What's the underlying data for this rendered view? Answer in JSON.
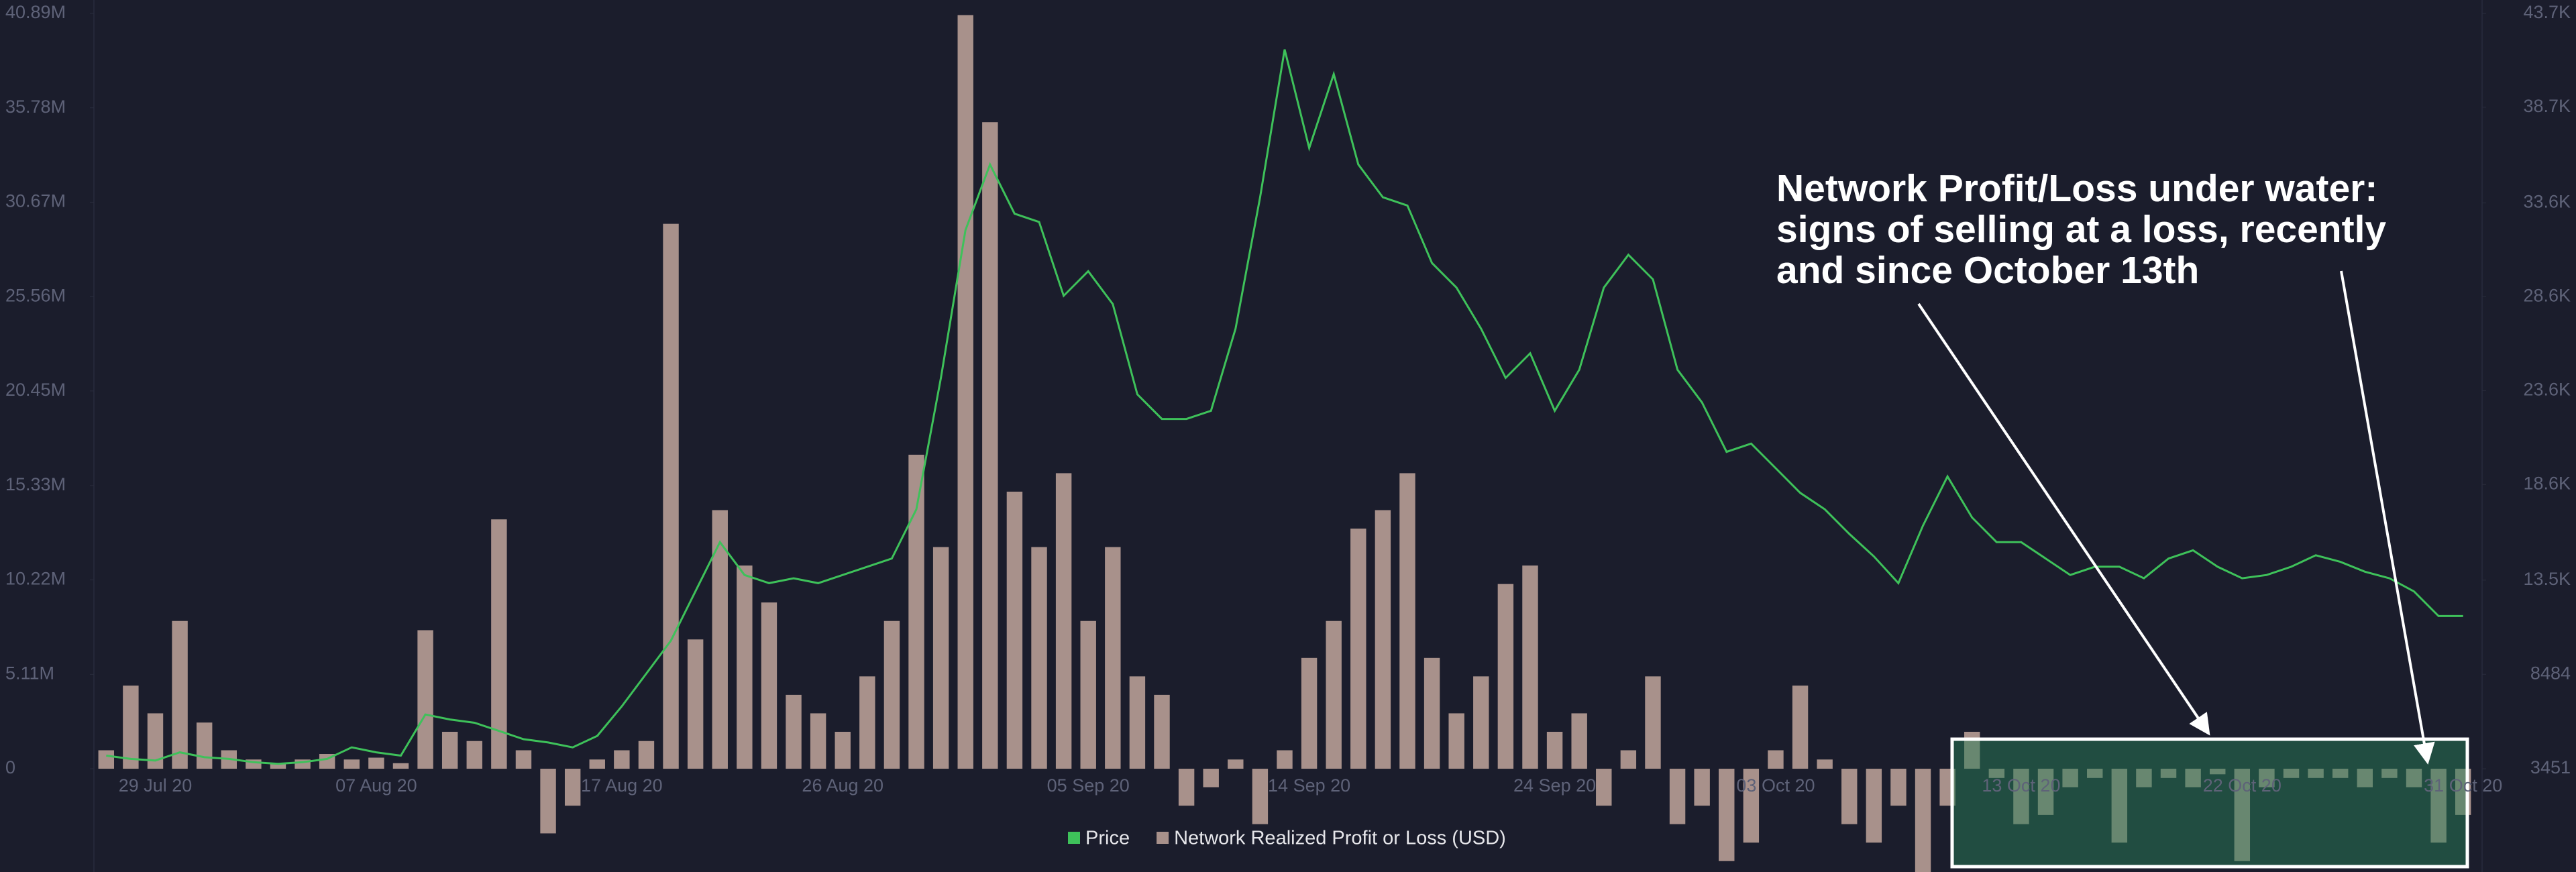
{
  "chart_data": {
    "type": "bar-line",
    "annotation": [
      "Network Profit/Loss under water:",
      "signs of selling at a loss, recently",
      "and since October 13th"
    ],
    "categories": [
      null,
      null,
      "29 Jul 20",
      null,
      null,
      null,
      null,
      null,
      null,
      null,
      null,
      "07 Aug 20",
      null,
      null,
      null,
      null,
      null,
      null,
      null,
      null,
      null,
      "17 Aug 20",
      null,
      null,
      null,
      null,
      null,
      null,
      null,
      null,
      "26 Aug 20",
      null,
      null,
      null,
      null,
      null,
      null,
      null,
      null,
      null,
      "05 Sep 20",
      null,
      null,
      null,
      null,
      null,
      null,
      null,
      null,
      "14 Sep 20",
      null,
      null,
      null,
      null,
      null,
      null,
      null,
      null,
      null,
      "24 Sep 20",
      null,
      null,
      null,
      null,
      null,
      null,
      null,
      null,
      "03 Oct 20",
      null,
      null,
      null,
      null,
      null,
      null,
      null,
      null,
      null,
      "13 Oct 20",
      null,
      null,
      null,
      null,
      null,
      null,
      null,
      null,
      "22 Oct 20",
      null,
      null,
      null,
      null,
      null,
      null,
      null,
      null,
      "31 Oct 20"
    ],
    "series": [
      {
        "name": "Price",
        "color": "#3ec15a",
        "axis": "y2",
        "kind": "line",
        "values": [
          4151,
          3976,
          3888,
          4326,
          4064,
          3976,
          3801,
          3714,
          3801,
          3976,
          4589,
          4326,
          4151,
          6339,
          6076,
          5901,
          5464,
          5026,
          4851,
          4589,
          5201,
          6776,
          8526,
          10276,
          12901,
          15526,
          13776,
          13339,
          13601,
          13339,
          13776,
          14214,
          14651,
          17276,
          24276,
          32151,
          35651,
          33026,
          32589,
          28651,
          29964,
          28214,
          23401,
          22089,
          22089,
          22526,
          26901,
          33901,
          41776,
          36526,
          40464,
          35651,
          33901,
          33464,
          30401,
          29089,
          26901,
          24276,
          25589,
          22526,
          24714,
          29089,
          30839,
          29526,
          24714,
          22964,
          20339,
          20776,
          19464,
          18151,
          17276,
          15964,
          14764,
          13339,
          16401,
          19026,
          16839,
          15526,
          15526,
          14651,
          13776,
          14214,
          14214,
          13601,
          14651,
          15089,
          14214,
          13601,
          13776,
          14214,
          14826,
          14476,
          13951,
          13601,
          12901,
          11589,
          11589
        ]
      },
      {
        "name": "Network Realized Profit or Loss (USD)",
        "color": "#a8918b",
        "kind": "bar",
        "values": [
          1000000,
          4500000,
          3000000,
          8000000,
          2500000,
          1000000,
          500000,
          300000,
          500000,
          800000,
          500000,
          600000,
          300000,
          7500000,
          2000000,
          1500000,
          13500000,
          1000000,
          -3500000,
          -2000000,
          500000,
          1000000,
          1500000,
          29500000,
          7000000,
          14000000,
          11000000,
          9000000,
          4000000,
          3000000,
          2000000,
          5000000,
          8000000,
          17000000,
          12000000,
          40800000,
          35000000,
          15000000,
          12000000,
          16000000,
          8000000,
          12000000,
          5000000,
          4000000,
          -2000000,
          -1000000,
          500000,
          -3000000,
          1000000,
          6000000,
          8000000,
          13000000,
          14000000,
          16000000,
          6000000,
          3000000,
          5000000,
          10000000,
          11000000,
          2000000,
          3000000,
          -2000000,
          1000000,
          5000000,
          -3000000,
          -2000000,
          -5000000,
          -4000000,
          1000000,
          4500000,
          500000,
          -3000000,
          -4000000,
          -2000000,
          -6000000,
          -2000000,
          2000000,
          -500000,
          -3000000,
          -2500000,
          -1000000,
          -500000,
          -4000000,
          -1000000,
          -500000,
          -1000000,
          -300000,
          -5000000,
          -1000000,
          -500000,
          -500000,
          -500000,
          -1000000,
          -500000,
          -1000000,
          -4000000,
          -2500000
        ]
      }
    ],
    "ylim": [
      -5300000,
      40890000
    ],
    "yticks": [
      0,
      {
        "value": 5110000,
        "label": "5.11M"
      },
      {
        "value": 10220000,
        "label": "10.22M"
      },
      {
        "value": 15330000,
        "label": "15.33M"
      },
      {
        "value": 20450000,
        "label": "20.45M"
      },
      {
        "value": 25560000,
        "label": "25.56M"
      },
      {
        "value": 30670000,
        "label": "30.67M"
      },
      {
        "value": 35780000,
        "label": "35.78M"
      },
      {
        "value": 40890000,
        "label": "40.89M"
      }
    ],
    "y2lim": [
      -1766,
      43700
    ],
    "y2ticks": [
      3451,
      8484,
      {
        "value": 13500,
        "label": "13.5K"
      },
      {
        "value": 18600,
        "label": "18.6K"
      },
      {
        "value": 23600,
        "label": "23.6K"
      },
      {
        "value": 28600,
        "label": "28.6K"
      },
      {
        "value": 33600,
        "label": "33.6K"
      },
      {
        "value": 38700,
        "label": "38.7K"
      },
      {
        "value": 43700,
        "label": "43.7K"
      }
    ],
    "grid": false
  }
}
